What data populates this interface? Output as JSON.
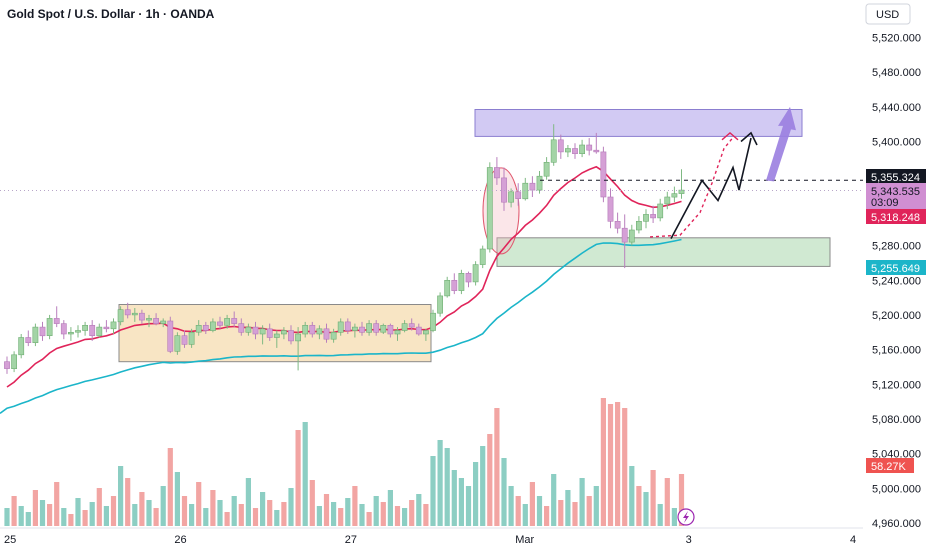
{
  "chart_data": {
    "type": "candlestick",
    "title": "Gold Spot / U.S. Dollar · 1h · OANDA",
    "currency_label": "USD",
    "y_axis": {
      "range": [
        4945,
        5550
      ],
      "ticks": [
        "5,520.000",
        "5,480.000",
        "5,440.000",
        "5,400.000",
        "5,360.000",
        "5,320.000",
        "5,280.000",
        "5,240.000",
        "5,200.000",
        "5,160.000",
        "5,120.000",
        "5,080.000",
        "5,040.000",
        "5,000.000",
        "4,960.000"
      ],
      "tick_values": [
        5520,
        5480,
        5440,
        5400,
        5360,
        5320,
        5280,
        5240,
        5200,
        5160,
        5120,
        5080,
        5040,
        5000,
        4960
      ]
    },
    "x_axis": {
      "labels": [
        "25",
        "26",
        "27",
        "Mar",
        "3",
        "4"
      ],
      "label_bar_index": [
        0,
        24,
        48,
        72,
        96,
        120
      ]
    },
    "last_price": "5,355.324",
    "countdown_price": "5,343.535",
    "countdown_time": "03:09",
    "ema_fast_value": "5,318.248",
    "ema_slow_value": "5,255.649",
    "volume_value": "58.27K",
    "colors": {
      "up": "#a3d4a6",
      "down": "#d5a0d6",
      "ema_fast": "#e0245a",
      "ema_slow": "#1bb5c9",
      "supply_zone": "#c7bdf0",
      "demand_zone": "#c4e3c7",
      "range_box": "#f5dcb0",
      "vol_up": "#7fc9bd",
      "vol_down": "#f19b99",
      "arrow": "#9a7ee0"
    },
    "candles": [
      [
        5146,
        5152,
        5132,
        5138
      ],
      [
        5138,
        5158,
        5134,
        5154
      ],
      [
        5154,
        5178,
        5150,
        5174
      ],
      [
        5174,
        5182,
        5164,
        5168
      ],
      [
        5168,
        5190,
        5164,
        5186
      ],
      [
        5186,
        5192,
        5170,
        5176
      ],
      [
        5176,
        5200,
        5172,
        5196
      ],
      [
        5196,
        5210,
        5186,
        5190
      ],
      [
        5190,
        5194,
        5172,
        5178
      ],
      [
        5178,
        5186,
        5170,
        5180
      ],
      [
        5180,
        5188,
        5174,
        5182
      ],
      [
        5182,
        5192,
        5176,
        5188
      ],
      [
        5188,
        5194,
        5170,
        5176
      ],
      [
        5176,
        5190,
        5174,
        5186
      ],
      [
        5186,
        5194,
        5180,
        5184
      ],
      [
        5184,
        5196,
        5178,
        5192
      ],
      [
        5192,
        5210,
        5188,
        5206
      ],
      [
        5206,
        5214,
        5196,
        5200
      ],
      [
        5200,
        5208,
        5192,
        5202
      ],
      [
        5202,
        5206,
        5190,
        5194
      ],
      [
        5194,
        5200,
        5186,
        5196
      ],
      [
        5196,
        5202,
        5188,
        5190
      ],
      [
        5190,
        5196,
        5186,
        5193
      ],
      [
        5193,
        5198,
        5156,
        5158
      ],
      [
        5158,
        5180,
        5154,
        5176
      ],
      [
        5176,
        5182,
        5162,
        5166
      ],
      [
        5166,
        5184,
        5162,
        5180
      ],
      [
        5180,
        5194,
        5176,
        5188
      ],
      [
        5188,
        5192,
        5178,
        5182
      ],
      [
        5182,
        5196,
        5180,
        5192
      ],
      [
        5192,
        5198,
        5184,
        5188
      ],
      [
        5188,
        5200,
        5184,
        5196
      ],
      [
        5196,
        5204,
        5186,
        5190
      ],
      [
        5190,
        5196,
        5176,
        5180
      ],
      [
        5180,
        5190,
        5176,
        5186
      ],
      [
        5186,
        5192,
        5172,
        5178
      ],
      [
        5178,
        5188,
        5166,
        5184
      ],
      [
        5184,
        5190,
        5170,
        5174
      ],
      [
        5174,
        5182,
        5162,
        5178
      ],
      [
        5178,
        5186,
        5172,
        5182
      ],
      [
        5182,
        5188,
        5166,
        5170
      ],
      [
        5170,
        5186,
        5136,
        5178
      ],
      [
        5178,
        5192,
        5174,
        5188
      ],
      [
        5188,
        5192,
        5174,
        5178
      ],
      [
        5178,
        5188,
        5172,
        5184
      ],
      [
        5184,
        5190,
        5168,
        5172
      ],
      [
        5172,
        5184,
        5168,
        5180
      ],
      [
        5180,
        5196,
        5176,
        5192
      ],
      [
        5192,
        5196,
        5178,
        5182
      ],
      [
        5182,
        5190,
        5174,
        5186
      ],
      [
        5186,
        5192,
        5176,
        5180
      ],
      [
        5180,
        5194,
        5176,
        5190
      ],
      [
        5190,
        5194,
        5176,
        5180
      ],
      [
        5180,
        5190,
        5178,
        5188
      ],
      [
        5188,
        5190,
        5174,
        5178
      ],
      [
        5178,
        5186,
        5170,
        5182
      ],
      [
        5182,
        5194,
        5180,
        5190
      ],
      [
        5190,
        5196,
        5182,
        5186
      ],
      [
        5186,
        5190,
        5176,
        5178
      ],
      [
        5178,
        5184,
        5170,
        5182
      ],
      [
        5182,
        5206,
        5180,
        5202
      ],
      [
        5202,
        5226,
        5198,
        5222
      ],
      [
        5222,
        5244,
        5220,
        5240
      ],
      [
        5240,
        5248,
        5224,
        5228
      ],
      [
        5228,
        5252,
        5224,
        5248
      ],
      [
        5248,
        5250,
        5232,
        5238
      ],
      [
        5238,
        5262,
        5234,
        5258
      ],
      [
        5258,
        5280,
        5254,
        5276
      ],
      [
        5276,
        5376,
        5272,
        5370
      ],
      [
        5370,
        5382,
        5350,
        5358
      ],
      [
        5358,
        5370,
        5320,
        5330
      ],
      [
        5330,
        5346,
        5324,
        5342
      ],
      [
        5342,
        5352,
        5326,
        5334
      ],
      [
        5334,
        5358,
        5332,
        5352
      ],
      [
        5352,
        5360,
        5336,
        5344
      ],
      [
        5344,
        5366,
        5340,
        5360
      ],
      [
        5360,
        5382,
        5356,
        5376
      ],
      [
        5376,
        5420,
        5372,
        5402
      ],
      [
        5402,
        5408,
        5380,
        5388
      ],
      [
        5388,
        5396,
        5382,
        5392
      ],
      [
        5392,
        5398,
        5380,
        5386
      ],
      [
        5386,
        5402,
        5382,
        5396
      ],
      [
        5396,
        5404,
        5384,
        5390
      ],
      [
        5390,
        5410,
        5386,
        5388
      ],
      [
        5388,
        5394,
        5330,
        5336
      ],
      [
        5336,
        5346,
        5300,
        5308
      ],
      [
        5308,
        5318,
        5294,
        5300
      ],
      [
        5300,
        5316,
        5254,
        5284
      ],
      [
        5284,
        5304,
        5280,
        5298
      ],
      [
        5298,
        5314,
        5294,
        5308
      ],
      [
        5308,
        5322,
        5300,
        5316
      ],
      [
        5316,
        5326,
        5306,
        5312
      ],
      [
        5312,
        5334,
        5308,
        5328
      ],
      [
        5328,
        5342,
        5322,
        5336
      ],
      [
        5336,
        5348,
        5330,
        5340
      ],
      [
        5340,
        5368,
        5334,
        5344
      ]
    ],
    "volume": [
      [
        18,
        0
      ],
      [
        30,
        1
      ],
      [
        20,
        0
      ],
      [
        14,
        0
      ],
      [
        36,
        1
      ],
      [
        26,
        0
      ],
      [
        22,
        1
      ],
      [
        44,
        1
      ],
      [
        18,
        0
      ],
      [
        12,
        1
      ],
      [
        28,
        0
      ],
      [
        16,
        1
      ],
      [
        24,
        0
      ],
      [
        38,
        1
      ],
      [
        20,
        0
      ],
      [
        30,
        1
      ],
      [
        60,
        0
      ],
      [
        48,
        1
      ],
      [
        22,
        0
      ],
      [
        34,
        1
      ],
      [
        26,
        0
      ],
      [
        18,
        1
      ],
      [
        40,
        0
      ],
      [
        78,
        1
      ],
      [
        54,
        0
      ],
      [
        30,
        1
      ],
      [
        22,
        0
      ],
      [
        44,
        1
      ],
      [
        18,
        0
      ],
      [
        36,
        1
      ],
      [
        26,
        0
      ],
      [
        14,
        1
      ],
      [
        30,
        0
      ],
      [
        22,
        1
      ],
      [
        48,
        0
      ],
      [
        18,
        1
      ],
      [
        34,
        0
      ],
      [
        26,
        1
      ],
      [
        16,
        0
      ],
      [
        24,
        1
      ],
      [
        38,
        0
      ],
      [
        96,
        1
      ],
      [
        104,
        0
      ],
      [
        46,
        1
      ],
      [
        20,
        0
      ],
      [
        32,
        1
      ],
      [
        24,
        0
      ],
      [
        18,
        1
      ],
      [
        28,
        0
      ],
      [
        40,
        1
      ],
      [
        22,
        0
      ],
      [
        14,
        1
      ],
      [
        30,
        0
      ],
      [
        24,
        1
      ],
      [
        36,
        0
      ],
      [
        20,
        1
      ],
      [
        18,
        0
      ],
      [
        26,
        1
      ],
      [
        32,
        0
      ],
      [
        22,
        1
      ],
      [
        70,
        0
      ],
      [
        86,
        0
      ],
      [
        78,
        0
      ],
      [
        56,
        0
      ],
      [
        48,
        0
      ],
      [
        40,
        0
      ],
      [
        64,
        0
      ],
      [
        80,
        0
      ],
      [
        92,
        1
      ],
      [
        118,
        1
      ],
      [
        68,
        0
      ],
      [
        40,
        0
      ],
      [
        30,
        1
      ],
      [
        22,
        0
      ],
      [
        44,
        1
      ],
      [
        30,
        0
      ],
      [
        20,
        1
      ],
      [
        52,
        0
      ],
      [
        26,
        1
      ],
      [
        36,
        0
      ],
      [
        24,
        1
      ],
      [
        48,
        0
      ],
      [
        30,
        1
      ],
      [
        40,
        0
      ],
      [
        128,
        1
      ],
      [
        122,
        1
      ],
      [
        124,
        1
      ],
      [
        118,
        1
      ],
      [
        60,
        0
      ],
      [
        40,
        1
      ],
      [
        34,
        0
      ],
      [
        56,
        1
      ],
      [
        22,
        0
      ],
      [
        48,
        1
      ],
      [
        18,
        0
      ],
      [
        52,
        1
      ]
    ]
  }
}
